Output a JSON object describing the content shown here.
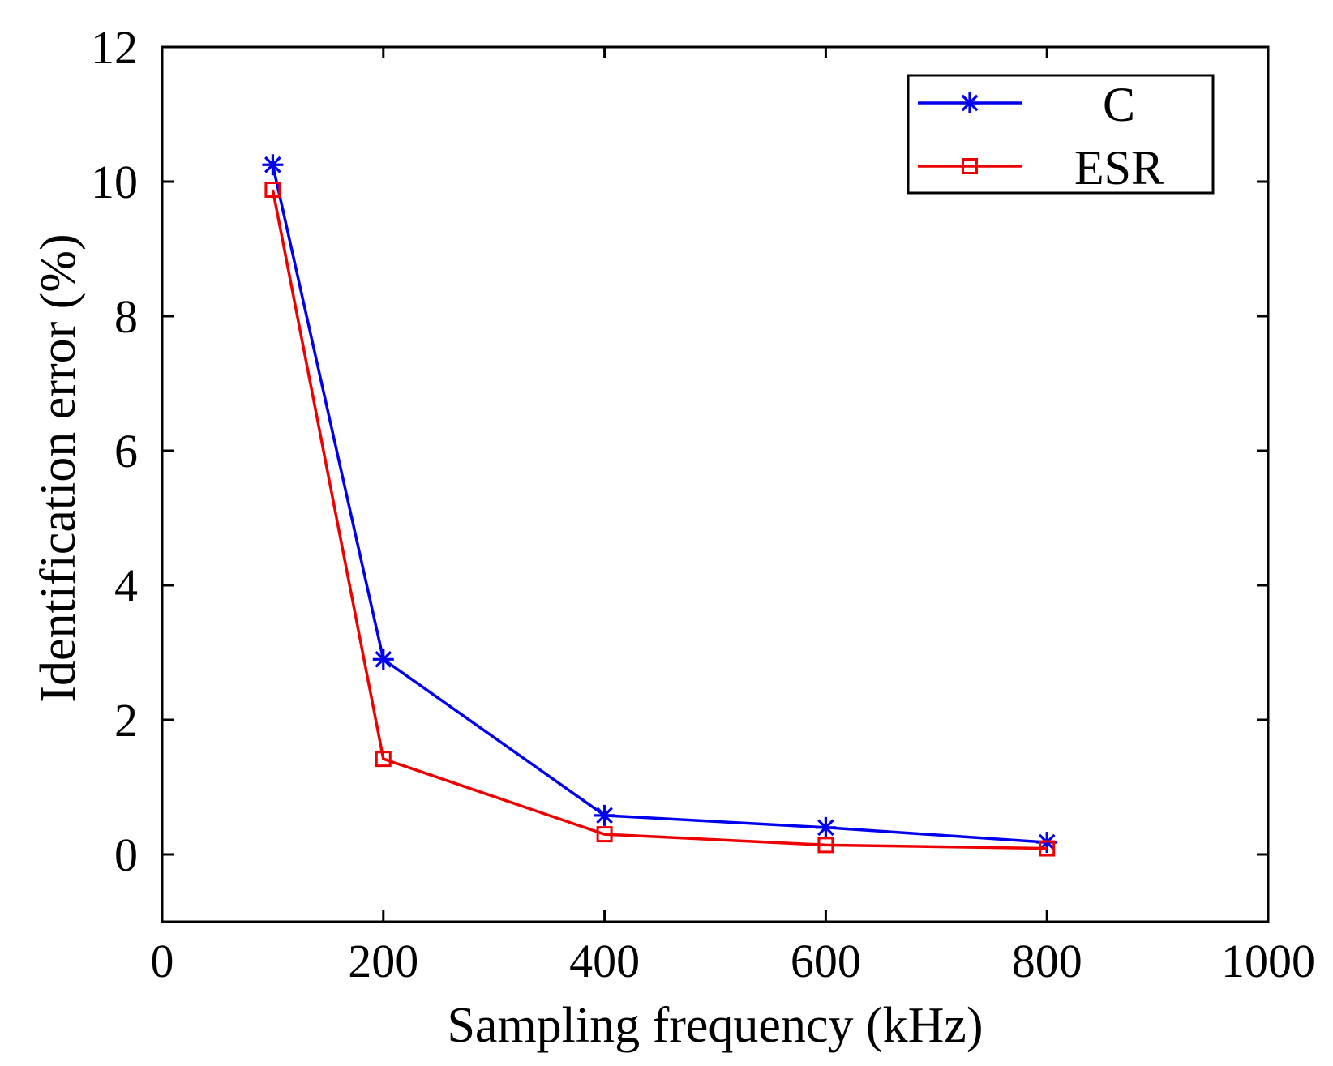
{
  "chart_data": {
    "type": "line",
    "title": "",
    "xlabel": "Sampling frequency (kHz)",
    "ylabel": "Identification error (%)",
    "xlim": [
      0,
      1000
    ],
    "ylim": [
      -1,
      12
    ],
    "xticks": [
      0,
      200,
      400,
      600,
      800,
      1000
    ],
    "yticks": [
      0,
      2,
      4,
      6,
      8,
      10,
      12
    ],
    "xtick_labels": [
      "0",
      "200",
      "400",
      "600",
      "800",
      "1000"
    ],
    "ytick_labels": [
      "0",
      "2",
      "4",
      "6",
      "8",
      "10",
      "12"
    ],
    "grid": false,
    "legend_position": "top-right",
    "series": [
      {
        "name": "C",
        "color": "#0000ee",
        "marker": "asterisk",
        "x": [
          100,
          200,
          400,
          600,
          800
        ],
        "y": [
          10.25,
          2.9,
          0.58,
          0.4,
          0.18
        ]
      },
      {
        "name": "ESR",
        "color": "#ee0000",
        "marker": "square",
        "x": [
          100,
          200,
          400,
          600,
          800
        ],
        "y": [
          9.88,
          1.42,
          0.3,
          0.14,
          0.09
        ]
      }
    ]
  }
}
